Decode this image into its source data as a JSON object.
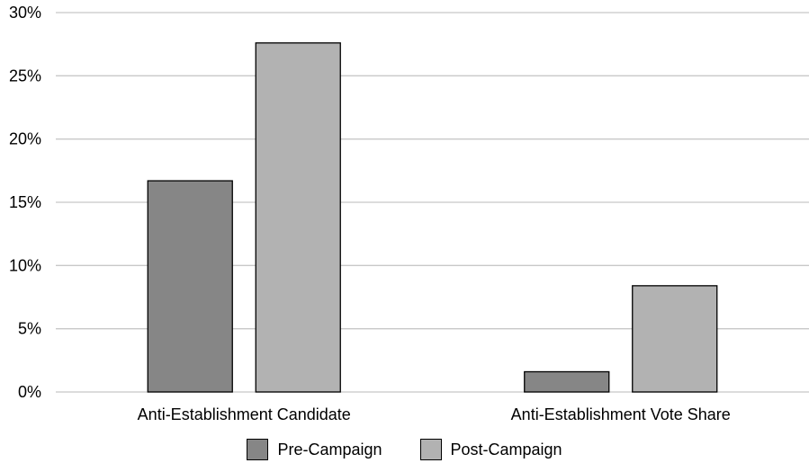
{
  "chart_data": {
    "type": "bar",
    "categories": [
      "Anti-Establishment Candidate",
      "Anti-Establishment Vote Share"
    ],
    "series": [
      {
        "name": "Pre-Campaign",
        "values": [
          16.7,
          1.6
        ],
        "color": "#868686"
      },
      {
        "name": "Post-Campaign",
        "values": [
          27.6,
          8.4
        ],
        "color": "#b2b2b2"
      }
    ],
    "title": "",
    "xlabel": "",
    "ylabel": "",
    "ylim": [
      0,
      30
    ],
    "yticks": [
      "0%",
      "5%",
      "10%",
      "15%",
      "20%",
      "25%",
      "30%"
    ],
    "grid": true,
    "legend_position": "bottom"
  }
}
